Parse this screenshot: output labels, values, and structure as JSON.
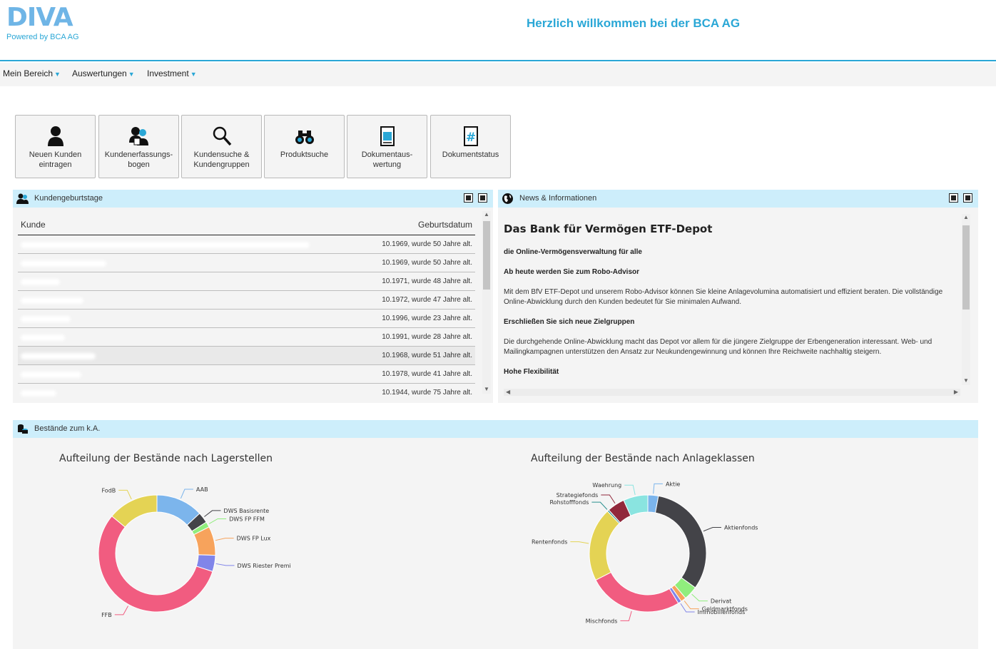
{
  "header": {
    "logo_text": "DIVA",
    "logo_sub": "Powered by BCA AG",
    "welcome": "Herzlich willkommen bei der BCA AG"
  },
  "nav": [
    {
      "label": "Mein Bereich"
    },
    {
      "label": "Auswertungen"
    },
    {
      "label": "Investment"
    }
  ],
  "tiles": [
    {
      "line1": "Neuen Kunden",
      "line2": "eintragen",
      "icon": "user-icon"
    },
    {
      "line1": "Kundenerfassungs-",
      "line2": "bogen",
      "icon": "users-form-icon"
    },
    {
      "line1": "Kundensuche &",
      "line2": "Kundengruppen",
      "icon": "magnifier-icon"
    },
    {
      "line1": "Produktsuche",
      "line2": "",
      "icon": "binoculars-icon"
    },
    {
      "line1": "Dokumentaus-",
      "line2": "wertung",
      "icon": "document-icon"
    },
    {
      "line1": "Dokumentstatus",
      "line2": "",
      "icon": "hash-document-icon"
    }
  ],
  "birthdays": {
    "title": "Kundengeburtstage",
    "col_customer": "Kunde",
    "col_date": "Geburtsdatum",
    "rows": [
      {
        "date": "10.1969, wurde 50 Jahre alt."
      },
      {
        "date": "10.1969, wurde 50 Jahre alt."
      },
      {
        "date": "10.1971, wurde 48 Jahre alt."
      },
      {
        "date": "10.1972, wurde 47 Jahre alt."
      },
      {
        "date": "10.1996, wurde 23 Jahre alt."
      },
      {
        "date": "10.1991, wurde 28 Jahre alt."
      },
      {
        "date": "10.1968, wurde 51 Jahre alt."
      },
      {
        "date": "10.1978, wurde 41 Jahre alt."
      },
      {
        "date": "10.1944, wurde 75 Jahre alt."
      }
    ]
  },
  "news": {
    "title": "News & Informationen",
    "heading": "Das Bank für Vermögen ETF-Depot",
    "sub1": "die Online-Vermögensverwaltung für alle",
    "sub2": "Ab heute werden Sie zum Robo-Advisor",
    "p1": "Mit dem BfV ETF-Depot und unserem Robo-Advisor können Sie kleine Anlagevolumina automatisiert und effizient beraten. Die vollständige Online-Abwicklung durch den Kunden bedeutet für Sie minimalen Aufwand.",
    "sub3": "Erschließen Sie sich neue Zielgruppen",
    "p2": "Die durchgehende Online-Abwicklung macht das Depot vor allem für die jüngere Zielgruppe der Erbengeneration interessant. Web- und Mailingkampagnen unterstützen den Ansatz zur Neukundengewinnung und können Ihre Reichweite nachhaltig steigern.",
    "sub4": "Hohe Flexibilität"
  },
  "holdings": {
    "title": "Bestände zum k.A."
  },
  "chart_data": [
    {
      "type": "pie",
      "title": "Aufteilung der Bestände nach Lagerstellen",
      "categories": [
        "AAB",
        "DWS Basisrente",
        "DWS FP FFM",
        "DWS FP Lux",
        "DWS Riester Premi",
        "FFB",
        "FodB"
      ],
      "values": [
        13,
        3,
        1.5,
        8,
        4.5,
        56,
        14
      ],
      "colors": [
        "#7cb5ec",
        "#434348",
        "#90ed7d",
        "#f7a35c",
        "#8085e9",
        "#f15c80",
        "#e4d354"
      ]
    },
    {
      "type": "pie",
      "title": "Aufteilung der Bestände nach Anlageklassen",
      "categories": [
        "Aktie",
        "Aktienfonds",
        "Derivat",
        "Geldmarktfonds",
        "Immobilienfonds",
        "Mischfonds",
        "Rentenfonds",
        "Rohstofffonds",
        "Strategiefonds",
        "Waehrung"
      ],
      "values": [
        3,
        33,
        4,
        1.5,
        1,
        27,
        21,
        0.5,
        5,
        7
      ],
      "colors": [
        "#7cb5ec",
        "#434348",
        "#90ed7d",
        "#f7a35c",
        "#8085e9",
        "#f15c80",
        "#e4d354",
        "#2b908f",
        "#91283b",
        "#8ae4e0"
      ]
    }
  ]
}
